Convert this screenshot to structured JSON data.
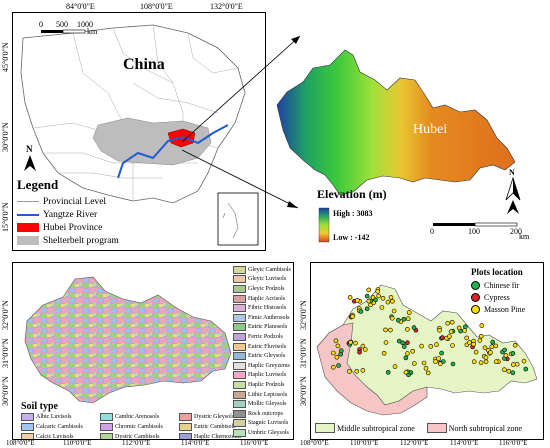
{
  "top_left": {
    "title": "China",
    "top_ticks": [
      "84°0'0\"E",
      "108°0'0\"E",
      "132°0'0\"E"
    ],
    "left_ticks": [
      "45°0'0\"N",
      "30°0'0\"N",
      "15°0'0\"N"
    ],
    "scale_labels": [
      "0",
      "500",
      "1000"
    ],
    "scale_unit": "km",
    "north": "N",
    "legend_title": "Legend",
    "legend_items": [
      {
        "label": "Provincial Level",
        "color": "#9a9a9a"
      },
      {
        "label": "Yangtze River",
        "color": "#1f5bd6"
      },
      {
        "label": "Hubei Province",
        "color": "#ff0000"
      },
      {
        "label": "Shelterbelt program",
        "color": "#bdbdbd"
      }
    ]
  },
  "top_right": {
    "label": "Hubei",
    "elevation_title": "Elevation (m)",
    "high": "High : 3083",
    "low": "Low : -142",
    "scale_labels": [
      "0",
      "100",
      "200"
    ],
    "scale_unit": "km",
    "north": "N"
  },
  "bottom_left": {
    "left_ticks": [
      "32°0'0\"N",
      "31°0'0\"N",
      "30°0'0\"N"
    ],
    "legend_title": "Soil type",
    "soil_types_right": [
      {
        "label": "Gleyic Cambisols",
        "color": "#d6d69a"
      },
      {
        "label": "Gleyic Luvisols",
        "color": "#e8c8a8"
      },
      {
        "label": "Gleyic Podzols",
        "color": "#a8c890"
      },
      {
        "label": "Haplic Acrisols",
        "color": "#d8a0a0"
      },
      {
        "label": "Fibric Histosols",
        "color": "#d8b0d8"
      },
      {
        "label": "Fimic Anthrosols",
        "color": "#b0c8e8"
      },
      {
        "label": "Eutric Planosols",
        "color": "#8fc88f"
      },
      {
        "label": "Ferric Podzols",
        "color": "#c0a0d8"
      },
      {
        "label": "Eutric Fluvisols",
        "color": "#f0c890"
      },
      {
        "label": "Eutric Gleysols",
        "color": "#90b8d8"
      },
      {
        "label": "Haplic Greyzems",
        "color": "#e0e0e0"
      },
      {
        "label": "Haplic Luvisols",
        "color": "#f0a8c8"
      },
      {
        "label": "Haplic Podzols",
        "color": "#c8e0a0"
      },
      {
        "label": "Lithic Leptosols",
        "color": "#c8a890"
      },
      {
        "label": "Mollic Gleysols",
        "color": "#a0d0c0"
      },
      {
        "label": "Rock outcrops",
        "color": "#909090"
      },
      {
        "label": "Stagnic Luvisols",
        "color": "#d0d0a0"
      },
      {
        "label": "Umbric Gleysols",
        "color": "#b8e0b8"
      }
    ],
    "soil_types_bottom": [
      {
        "label": "Albic Luvisols",
        "color": "#c8b0f0"
      },
      {
        "label": "Cambic Arenosols",
        "color": "#90e0e0"
      },
      {
        "label": "Dystric Gleysols",
        "color": "#f0a0a0"
      },
      {
        "label": "Calcaric Cambisols",
        "color": "#a0c8f0"
      },
      {
        "label": "Chromic Cambisols",
        "color": "#d0a0e8"
      },
      {
        "label": "Eutric Cambisols",
        "color": "#e8d090"
      },
      {
        "label": "Calcic Luvisols",
        "color": "#f0d0a0"
      },
      {
        "label": "Dystric Cambisols",
        "color": "#b0d890"
      },
      {
        "label": "Haplic Chernozems",
        "color": "#a0a0d8"
      }
    ]
  },
  "bottom_right": {
    "left_ticks": [
      "32°0'0\"N",
      "31°0'0\"N",
      "30°0'0\"N"
    ],
    "legend_title": "Plots location",
    "plots": [
      {
        "label": "Chinese fir",
        "color": "#22b14c"
      },
      {
        "label": "Cypress",
        "color": "#d62728"
      },
      {
        "label": "Masson Pine",
        "color": "#ffe000"
      }
    ],
    "zones": [
      {
        "label": "Middle subtropical zone",
        "color": "#e6f5c6"
      },
      {
        "label": "North subtropical zone",
        "color": "#f6c6c6"
      }
    ]
  },
  "bottom_axis": [
    "108°0'0\"E",
    "110°0'0\"E",
    "112°0'0\"E",
    "114°0'0\"E",
    "116°0'0\"E",
    "108°0'0\"E",
    "110°0'0\"E",
    "112°0'0\"E",
    "114°0'0\"E",
    "116°0'0\"E"
  ]
}
